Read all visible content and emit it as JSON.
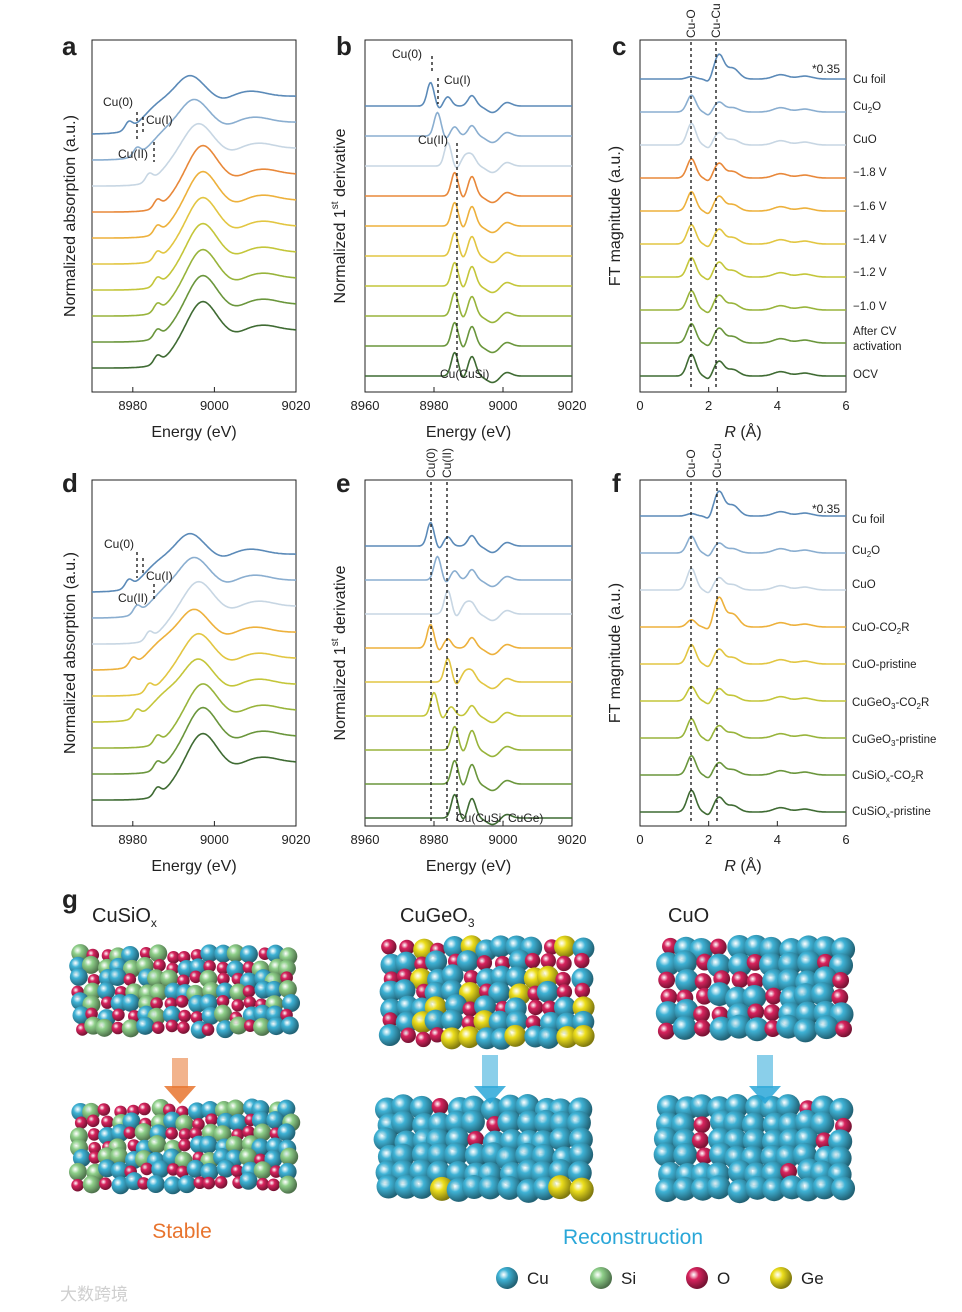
{
  "figure_labels": {
    "a": "a",
    "b": "b",
    "c": "c",
    "d": "d",
    "e": "e",
    "f": "f",
    "g": "g"
  },
  "colors": [
    "#5b8ab8",
    "#8aaed0",
    "#c7d6e3",
    "#e8883a",
    "#edb13c",
    "#e2c642",
    "#c4c63a",
    "#98b43b",
    "#6a963c",
    "#3f6b33"
  ],
  "chart_data": [
    {
      "id": "a",
      "type": "line",
      "xlabel": "Energy (eV)",
      "ylabel": "Normalized absorption (a.u.)",
      "xlim": [
        8970,
        9020
      ],
      "xticks": [
        "8980",
        "9000",
        "9020"
      ],
      "series": [
        {
          "name": "Cu foil",
          "edge": 8979,
          "peak": 8994,
          "amp": 0.9,
          "offset": 9
        },
        {
          "name": "Cu2O",
          "edge": 8981,
          "peak": 8995,
          "amp": 1.0,
          "offset": 8
        },
        {
          "name": "CuO",
          "edge": 8984,
          "peak": 8996,
          "amp": 1.1,
          "offset": 7
        },
        {
          "name": "-1.8 V",
          "edge": 8986,
          "peak": 8997,
          "amp": 1.3,
          "offset": 6
        },
        {
          "name": "-1.6 V",
          "edge": 8986,
          "peak": 8997,
          "amp": 1.3,
          "offset": 5
        },
        {
          "name": "-1.4 V",
          "edge": 8986,
          "peak": 8997,
          "amp": 1.3,
          "offset": 4
        },
        {
          "name": "-1.2 V",
          "edge": 8986,
          "peak": 8997,
          "amp": 1.3,
          "offset": 3
        },
        {
          "name": "-1.0 V",
          "edge": 8986,
          "peak": 8997,
          "amp": 1.3,
          "offset": 2
        },
        {
          "name": "After CV activation",
          "edge": 8986,
          "peak": 8997,
          "amp": 1.3,
          "offset": 1
        },
        {
          "name": "OCV",
          "edge": 8986,
          "peak": 8997,
          "amp": 1.3,
          "offset": 0
        }
      ],
      "annotations": [
        "Cu(0)",
        "Cu(I)",
        "Cu(II)"
      ]
    },
    {
      "id": "b",
      "type": "line",
      "xlabel": "Energy (eV)",
      "ylabel_main": "Normalized 1",
      "ylabel_sup": "st",
      "ylabel_end": " derivative",
      "xlim": [
        8960,
        9020
      ],
      "xticks": [
        "8960",
        "8980",
        "9000",
        "9020"
      ],
      "series": [
        {
          "name": "Cu foil",
          "peak": 8979,
          "offset": 9
        },
        {
          "name": "Cu2O",
          "peak": 8981,
          "offset": 8
        },
        {
          "name": "CuO",
          "peak": 8984,
          "offset": 7
        },
        {
          "name": "-1.8 V",
          "peak": 8986,
          "offset": 6
        },
        {
          "name": "-1.6 V",
          "peak": 8986,
          "offset": 5
        },
        {
          "name": "-1.4 V",
          "peak": 8986,
          "offset": 4
        },
        {
          "name": "-1.2 V",
          "peak": 8986,
          "offset": 3
        },
        {
          "name": "-1.0 V",
          "peak": 8986,
          "offset": 2
        },
        {
          "name": "After CV activation",
          "peak": 8986,
          "offset": 1
        },
        {
          "name": "OCV",
          "peak": 8986,
          "offset": 0
        }
      ],
      "annotations": [
        "Cu(0)",
        "Cu(I)",
        "Cu(II)",
        "Cu(CuSi)"
      ]
    },
    {
      "id": "c",
      "type": "line",
      "xlabel_italic": "R",
      "xlabel_rest": " (Å)",
      "ylabel": "FT magnitude (a.u.)",
      "xlim": [
        0,
        6
      ],
      "xticks": [
        "0",
        "2",
        "4",
        "6"
      ],
      "reference_lines": [
        "Cu-O",
        "Cu-Cu"
      ],
      "reference_r": [
        1.5,
        2.2
      ],
      "scale_note": "*0.35",
      "series": [
        {
          "name": "Cu foil",
          "cuo": 0.1,
          "cucu": 1.0,
          "offset": 9
        },
        {
          "name": "Cu2O",
          "cuo": 0.7,
          "cucu": 0.4,
          "offset": 8
        },
        {
          "name": "CuO",
          "cuo": 0.9,
          "cucu": 0.5,
          "offset": 7
        },
        {
          "name": "-1.8 V",
          "cuo": 0.8,
          "cucu": 0.6,
          "offset": 6
        },
        {
          "name": "-1.6 V",
          "cuo": 0.8,
          "cucu": 0.6,
          "offset": 5
        },
        {
          "name": "-1.4 V",
          "cuo": 0.8,
          "cucu": 0.6,
          "offset": 4
        },
        {
          "name": "-1.2 V",
          "cuo": 0.8,
          "cucu": 0.6,
          "offset": 3
        },
        {
          "name": "-1.0 V",
          "cuo": 0.8,
          "cucu": 0.6,
          "offset": 2
        },
        {
          "name": "After CV activation",
          "cuo": 0.8,
          "cucu": 0.6,
          "offset": 1
        },
        {
          "name": "OCV",
          "cuo": 0.9,
          "cucu": 0.6,
          "offset": 0
        }
      ]
    },
    {
      "id": "d",
      "type": "line",
      "xlabel": "Energy (eV)",
      "ylabel": "Normalized absorption (a.u.)",
      "xlim": [
        8970,
        9020
      ],
      "xticks": [
        "8980",
        "9000",
        "9020"
      ],
      "series": [
        {
          "name": "Cu foil",
          "edge": 8979,
          "peak": 8994,
          "amp": 0.9,
          "offset": 9
        },
        {
          "name": "Cu2O",
          "edge": 8981,
          "peak": 8995,
          "amp": 1.0,
          "offset": 8
        },
        {
          "name": "CuO",
          "edge": 8984,
          "peak": 8996,
          "amp": 1.1,
          "offset": 7
        },
        {
          "name": "CuO-CO2R",
          "edge": 8980,
          "peak": 8995,
          "amp": 1.0,
          "offset": 6
        },
        {
          "name": "CuO-pristine",
          "edge": 8984,
          "peak": 8996,
          "amp": 1.1,
          "offset": 5
        },
        {
          "name": "CuGeO3-CO2R",
          "edge": 8981,
          "peak": 8996,
          "amp": 1.1,
          "offset": 4
        },
        {
          "name": "CuGeO3-pristine",
          "edge": 8986,
          "peak": 8997,
          "amp": 1.2,
          "offset": 3
        },
        {
          "name": "CuSiOx-CO2R",
          "edge": 8986,
          "peak": 8997,
          "amp": 1.3,
          "offset": 2
        },
        {
          "name": "CuSiOx-pristine",
          "edge": 8986,
          "peak": 8997,
          "amp": 1.3,
          "offset": 1
        }
      ],
      "annotations": [
        "Cu(0)",
        "Cu(I)",
        "Cu(II)"
      ]
    },
    {
      "id": "e",
      "type": "line",
      "xlabel": "Energy (eV)",
      "ylabel_main": "Normalized 1",
      "ylabel_sup": "st",
      "ylabel_end": " derivative",
      "xlim": [
        8960,
        9020
      ],
      "xticks": [
        "8960",
        "8980",
        "9000",
        "9020"
      ],
      "reference_lines": [
        "Cu(0)",
        "Cu(II)"
      ],
      "series": [
        {
          "name": "Cu foil",
          "peak": 8979,
          "offset": 9
        },
        {
          "name": "Cu2O",
          "peak": 8981,
          "offset": 8
        },
        {
          "name": "CuO",
          "peak": 8984,
          "offset": 7
        },
        {
          "name": "CuO-CO2R",
          "peak": 8979,
          "offset": 6
        },
        {
          "name": "CuO-pristine",
          "peak": 8984,
          "offset": 5
        },
        {
          "name": "CuGeO3-CO2R",
          "peak": 8980,
          "offset": 4
        },
        {
          "name": "CuGeO3-pristine",
          "peak": 8986,
          "offset": 3
        },
        {
          "name": "CuSiOx-CO2R",
          "peak": 8986,
          "offset": 2
        },
        {
          "name": "CuSiOx-pristine",
          "peak": 8986,
          "offset": 1
        }
      ],
      "annotations": [
        "Cu(CuSi, CuGe)"
      ]
    },
    {
      "id": "f",
      "type": "line",
      "xlabel_italic": "R",
      "xlabel_rest": " (Å)",
      "ylabel": "FT magnitude (a.u.)",
      "xlim": [
        0,
        6
      ],
      "xticks": [
        "0",
        "2",
        "4",
        "6"
      ],
      "reference_lines": [
        "Cu-O",
        "Cu-Cu"
      ],
      "reference_r": [
        1.5,
        2.2
      ],
      "scale_note": "*0.35",
      "series": [
        {
          "name": "Cu foil",
          "cuo": 0.1,
          "cucu": 1.0,
          "offset": 9
        },
        {
          "name": "Cu2O",
          "cuo": 0.7,
          "cucu": 0.4,
          "offset": 8
        },
        {
          "name": "CuO",
          "cuo": 0.9,
          "cucu": 0.5,
          "offset": 7
        },
        {
          "name": "CuO-CO2R",
          "cuo": 0.3,
          "cucu": 1.2,
          "offset": 6
        },
        {
          "name": "CuO-pristine",
          "cuo": 0.8,
          "cucu": 0.6,
          "offset": 5
        },
        {
          "name": "CuGeO3-CO2R",
          "cuo": 0.6,
          "cucu": 0.5,
          "offset": 4
        },
        {
          "name": "CuGeO3-pristine",
          "cuo": 0.8,
          "cucu": 0.5,
          "offset": 3
        },
        {
          "name": "CuSiOx-CO2R",
          "cuo": 0.8,
          "cucu": 0.5,
          "offset": 2
        },
        {
          "name": "CuSiOx-pristine",
          "cuo": 0.9,
          "cucu": 0.6,
          "offset": 1
        }
      ]
    }
  ],
  "c_labels": [
    {
      "text": "Cu foil"
    },
    {
      "main": "Cu",
      "sub": "2",
      "rest": "O"
    },
    {
      "text": "CuO"
    },
    {
      "text": "−1.8 V"
    },
    {
      "text": "−1.6 V"
    },
    {
      "text": "−1.4 V"
    },
    {
      "text": "−1.2 V"
    },
    {
      "text": "−1.0 V"
    },
    {
      "line1": "After CV",
      "line2": "activation"
    },
    {
      "text": "OCV"
    }
  ],
  "f_labels": [
    {
      "text": "Cu foil"
    },
    {
      "main": "Cu",
      "sub": "2",
      "rest": "O"
    },
    {
      "text": "CuO"
    },
    {
      "main": "CuO-CO",
      "sub": "2",
      "rest": "R"
    },
    {
      "text": "CuO-pristine"
    },
    {
      "main": "CuGeO",
      "sub": "3",
      "rest": "-CO",
      "sub2": "2",
      "rest2": "R"
    },
    {
      "main": "CuGeO",
      "sub": "3",
      "rest": "-pristine"
    },
    {
      "main": "CuSiO",
      "sub": "x",
      "rest": "-CO",
      "sub2": "2",
      "rest2": "R"
    },
    {
      "main": "CuSiO",
      "sub": "x",
      "rest": "-pristine"
    }
  ],
  "panel_g": {
    "titles": [
      {
        "main": "CuSiO",
        "sub": "x"
      },
      {
        "main": "CuGeO",
        "sub": "3"
      },
      {
        "main": "CuO",
        "sub": ""
      }
    ],
    "stable": "Stable",
    "reconstruction": "Reconstruction",
    "legend": [
      "Cu",
      "Si",
      "O",
      "Ge"
    ],
    "atom_colors": {
      "Cu": "#3fb3d6",
      "Si": "#8fd08a",
      "O": "#d8245e",
      "Ge": "#ecde1c"
    },
    "stable_color": "#e8742e",
    "recon_color": "#2aa7d8"
  },
  "watermark": "大数跨境"
}
